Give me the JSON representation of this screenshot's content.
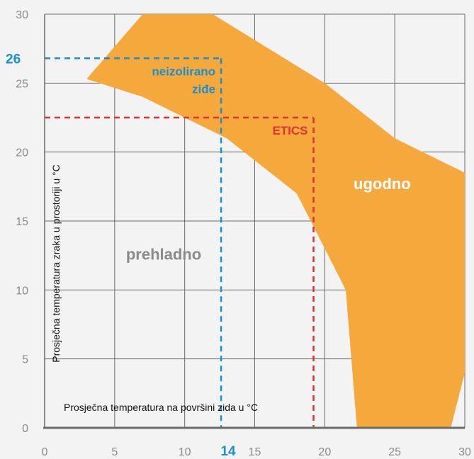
{
  "chart_data": {
    "type": "area",
    "title": "",
    "xlabel": "Prosječna temperatura na površini zida u °C",
    "ylabel": "Prosječna temperatura zraka u prostoriji u °C",
    "xlim": [
      0,
      30
    ],
    "ylim": [
      0,
      30
    ],
    "x_ticks": [
      "0",
      "5",
      "10",
      "15",
      "20",
      "25",
      "30"
    ],
    "y_ticks": [
      "0",
      "5",
      "10",
      "15",
      "20",
      "25",
      "30"
    ],
    "grid": true,
    "comfort_band": {
      "upper_edge": [
        [
          7,
          30
        ],
        [
          12,
          30
        ],
        [
          20,
          25
        ],
        [
          25,
          21
        ],
        [
          30,
          18.5
        ]
      ],
      "lower_edge": [
        [
          3,
          25.3
        ],
        [
          7,
          24
        ],
        [
          13,
          21
        ],
        [
          18,
          17
        ],
        [
          21.5,
          10
        ],
        [
          22.3,
          0
        ],
        [
          29,
          0
        ],
        [
          30,
          4
        ]
      ],
      "fill": "#f5a93d"
    },
    "regions": [
      {
        "label": "ugodno",
        "x": 24.1,
        "y": 17.3,
        "color": "#ffffff"
      },
      {
        "label": "prehladno",
        "x": 8.5,
        "y": 12.2,
        "color": "#8a8a8a"
      }
    ],
    "reference_lines": [
      {
        "name": "neizolirano zide",
        "label_lines": [
          "neizolirano",
          "ziđe"
        ],
        "x": 12.6,
        "y": 26.8,
        "color": "#1a8fd1",
        "x_label": "14",
        "y_label": "26"
      },
      {
        "name": "ETICS",
        "label_lines": [
          "ETICS"
        ],
        "x": 19.2,
        "y": 22.5,
        "color": "#e03232"
      }
    ]
  }
}
